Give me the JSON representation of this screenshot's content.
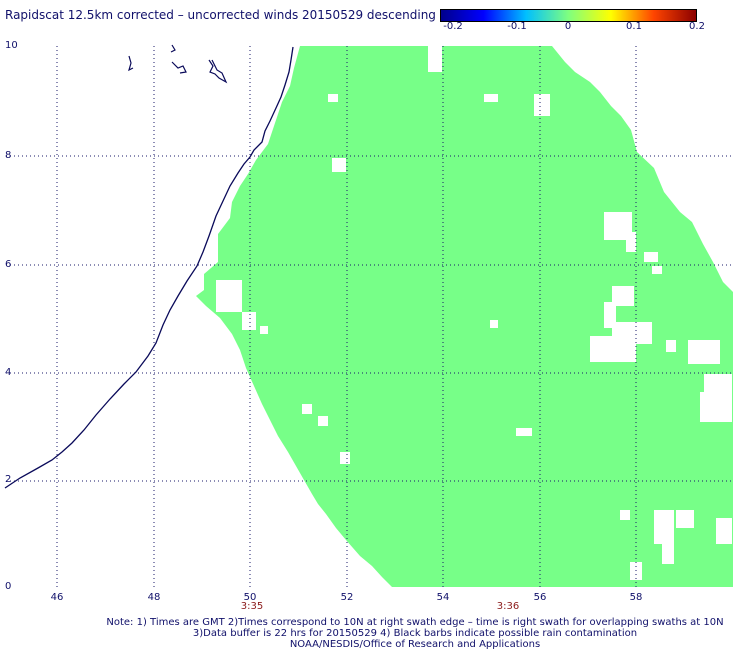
{
  "title": "Rapidscat 12.5km corrected – uncorrected winds 20150529 descending",
  "colorbar": {
    "ticks": [
      "-0.2",
      "-0.1",
      "0",
      "0.1",
      "0.2"
    ],
    "colors": [
      "#00008b",
      "#0000ff",
      "#00bfff",
      "#7fff7f",
      "#ffff00",
      "#ff4500",
      "#8b0000"
    ]
  },
  "axes": {
    "y_ticks": [
      "10",
      "8",
      "6",
      "4",
      "2",
      "0"
    ],
    "x_ticks": [
      "46",
      "48",
      "50",
      "52",
      "54",
      "56",
      "58"
    ],
    "lat_range": [
      0,
      10
    ],
    "lon_range": [
      45,
      60
    ]
  },
  "pass_times": [
    "3:35",
    "3:36"
  ],
  "notes": [
    "Note: 1) Times are GMT 2)Times correspond to 10N at right swath edge – time is right swath for overlapping swaths at 10N",
    "3)Data buffer is 22 hrs for 20150529 4) Black barbs indicate possible rain contamination",
    "NOAA/NESDIS/Office of Research and Applications"
  ],
  "swath_color": "#77ff88",
  "coast_color": "#0a0a5a"
}
